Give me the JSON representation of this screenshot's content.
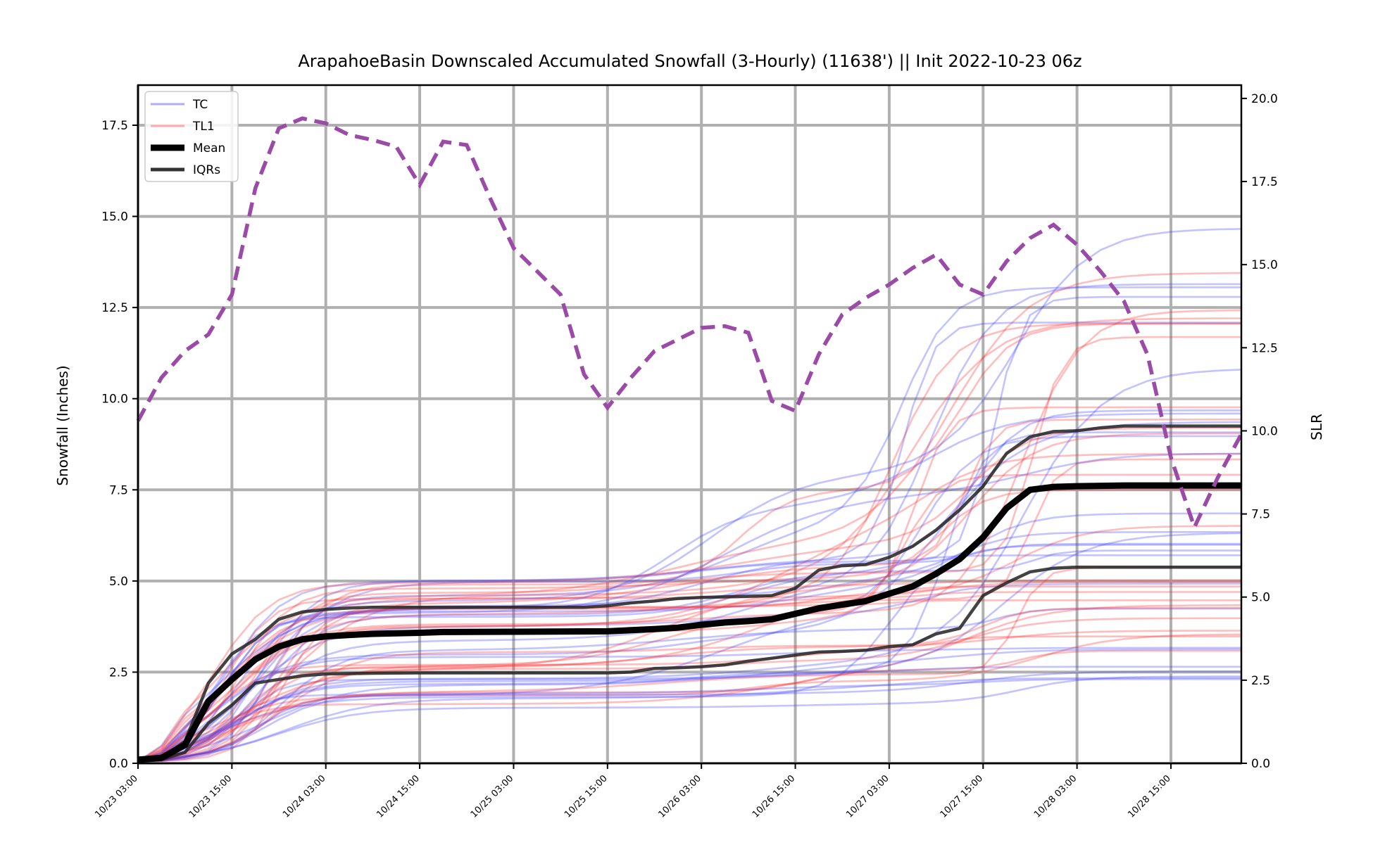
{
  "chart_data": {
    "type": "line",
    "title": "ArapahoeBasin Downscaled Accumulated Snowfall (3-Hourly) (11638') || Init 2022-10-23 06z",
    "ylabel": "Snowfall (Inches)",
    "y2label": "SLR",
    "ylim": [
      0,
      18.6
    ],
    "y2lim": [
      0,
      20.4
    ],
    "x_hours_range": [
      0,
      141
    ],
    "grid": true,
    "legend_position": "upper-left",
    "x_ticks": [
      {
        "h": 0,
        "label": "10/23 03:00"
      },
      {
        "h": 12,
        "label": "10/23 15:00"
      },
      {
        "h": 24,
        "label": "10/24 03:00"
      },
      {
        "h": 36,
        "label": "10/24 15:00"
      },
      {
        "h": 48,
        "label": "10/25 03:00"
      },
      {
        "h": 60,
        "label": "10/25 15:00"
      },
      {
        "h": 72,
        "label": "10/26 03:00"
      },
      {
        "h": 84,
        "label": "10/26 15:00"
      },
      {
        "h": 96,
        "label": "10/27 03:00"
      },
      {
        "h": 108,
        "label": "10/27 15:00"
      },
      {
        "h": 120,
        "label": "10/28 03:00"
      },
      {
        "h": 132,
        "label": "10/28 15:00"
      }
    ],
    "y_ticks": [
      {
        "v": 0,
        "label": "0.0"
      },
      {
        "v": 2.5,
        "label": "2.5"
      },
      {
        "v": 5,
        "label": "5.0"
      },
      {
        "v": 7.5,
        "label": "7.5"
      },
      {
        "v": 10,
        "label": "10.0"
      },
      {
        "v": 12.5,
        "label": "12.5"
      },
      {
        "v": 15,
        "label": "15.0"
      },
      {
        "v": 17.5,
        "label": "17.5"
      }
    ],
    "y2_ticks": [
      {
        "v": 0,
        "label": "0.0"
      },
      {
        "v": 2.5,
        "label": "2.5"
      },
      {
        "v": 5,
        "label": "5.0"
      },
      {
        "v": 7.5,
        "label": "7.5"
      },
      {
        "v": 10,
        "label": "10.0"
      },
      {
        "v": 12.5,
        "label": "12.5"
      },
      {
        "v": 15,
        "label": "15.0"
      },
      {
        "v": 17.5,
        "label": "17.5"
      },
      {
        "v": 20,
        "label": "20.0"
      }
    ],
    "legend": [
      {
        "name": "TC",
        "color": "#7777ff"
      },
      {
        "name": "TL1",
        "color": "#ff8888"
      },
      {
        "name": "Mean",
        "color": "#000000"
      },
      {
        "name": "IQRs",
        "color": "#333333"
      }
    ],
    "colors": {
      "tc": "#4444ff",
      "tl1": "#ff3333",
      "slr": "#9b4aa8",
      "grid": "#b0b0b0"
    },
    "mean": [
      [
        0,
        0.1
      ],
      [
        3,
        0.15
      ],
      [
        6,
        0.5
      ],
      [
        9,
        1.7
      ],
      [
        12,
        2.3
      ],
      [
        15,
        2.85
      ],
      [
        18,
        3.2
      ],
      [
        21,
        3.4
      ],
      [
        24,
        3.48
      ],
      [
        27,
        3.52
      ],
      [
        30,
        3.55
      ],
      [
        36,
        3.58
      ],
      [
        39,
        3.6
      ],
      [
        60,
        3.62
      ],
      [
        63,
        3.65
      ],
      [
        66,
        3.68
      ],
      [
        69,
        3.72
      ],
      [
        72,
        3.8
      ],
      [
        75,
        3.86
      ],
      [
        78,
        3.9
      ],
      [
        81,
        3.95
      ],
      [
        84,
        4.1
      ],
      [
        87,
        4.25
      ],
      [
        90,
        4.35
      ],
      [
        93,
        4.45
      ],
      [
        96,
        4.65
      ],
      [
        99,
        4.85
      ],
      [
        102,
        5.2
      ],
      [
        105,
        5.6
      ],
      [
        108,
        6.2
      ],
      [
        111,
        7.0
      ],
      [
        114,
        7.5
      ],
      [
        117,
        7.58
      ],
      [
        120,
        7.6
      ],
      [
        126,
        7.62
      ],
      [
        141,
        7.62
      ]
    ],
    "iqr_upper": [
      [
        0,
        0.1
      ],
      [
        3,
        0.15
      ],
      [
        6,
        0.6
      ],
      [
        9,
        2.2
      ],
      [
        12,
        3.0
      ],
      [
        15,
        3.4
      ],
      [
        18,
        3.95
      ],
      [
        21,
        4.15
      ],
      [
        24,
        4.22
      ],
      [
        27,
        4.26
      ],
      [
        30,
        4.28
      ],
      [
        36,
        4.28
      ],
      [
        39,
        4.28
      ],
      [
        57,
        4.28
      ],
      [
        60,
        4.32
      ],
      [
        63,
        4.4
      ],
      [
        66,
        4.45
      ],
      [
        69,
        4.52
      ],
      [
        72,
        4.55
      ],
      [
        78,
        4.58
      ],
      [
        81,
        4.6
      ],
      [
        84,
        4.8
      ],
      [
        87,
        5.3
      ],
      [
        90,
        5.42
      ],
      [
        93,
        5.45
      ],
      [
        96,
        5.65
      ],
      [
        99,
        5.95
      ],
      [
        102,
        6.4
      ],
      [
        105,
        6.95
      ],
      [
        108,
        7.6
      ],
      [
        111,
        8.5
      ],
      [
        114,
        8.95
      ],
      [
        117,
        9.1
      ],
      [
        120,
        9.12
      ],
      [
        123,
        9.2
      ],
      [
        126,
        9.25
      ],
      [
        141,
        9.25
      ]
    ],
    "iqr_lower": [
      [
        0,
        0.05
      ],
      [
        3,
        0.1
      ],
      [
        6,
        0.3
      ],
      [
        9,
        1.1
      ],
      [
        12,
        1.6
      ],
      [
        15,
        2.2
      ],
      [
        18,
        2.3
      ],
      [
        21,
        2.4
      ],
      [
        24,
        2.45
      ],
      [
        30,
        2.47
      ],
      [
        36,
        2.48
      ],
      [
        60,
        2.48
      ],
      [
        63,
        2.5
      ],
      [
        66,
        2.6
      ],
      [
        69,
        2.62
      ],
      [
        72,
        2.65
      ],
      [
        75,
        2.7
      ],
      [
        78,
        2.8
      ],
      [
        81,
        2.88
      ],
      [
        84,
        2.97
      ],
      [
        87,
        3.05
      ],
      [
        90,
        3.07
      ],
      [
        93,
        3.1
      ],
      [
        96,
        3.2
      ],
      [
        99,
        3.25
      ],
      [
        102,
        3.55
      ],
      [
        105,
        3.7
      ],
      [
        108,
        4.6
      ],
      [
        111,
        4.95
      ],
      [
        114,
        5.25
      ],
      [
        117,
        5.35
      ],
      [
        120,
        5.38
      ],
      [
        141,
        5.38
      ]
    ],
    "slr": [
      [
        0,
        10.3
      ],
      [
        3,
        11.6
      ],
      [
        6,
        12.4
      ],
      [
        9,
        12.9
      ],
      [
        12,
        14.1
      ],
      [
        15,
        17.3
      ],
      [
        18,
        19.1
      ],
      [
        21,
        19.4
      ],
      [
        24,
        19.25
      ],
      [
        27,
        18.9
      ],
      [
        30,
        18.75
      ],
      [
        33,
        18.55
      ],
      [
        36,
        17.4
      ],
      [
        39,
        18.7
      ],
      [
        42,
        18.6
      ],
      [
        45,
        17
      ],
      [
        48,
        15.5
      ],
      [
        51,
        14.8
      ],
      [
        54,
        14.1
      ],
      [
        57,
        11.7
      ],
      [
        60,
        10.7
      ],
      [
        63,
        11.6
      ],
      [
        66,
        12.4
      ],
      [
        69,
        12.75
      ],
      [
        72,
        13.1
      ],
      [
        75,
        13.15
      ],
      [
        78,
        12.95
      ],
      [
        81,
        10.9
      ],
      [
        84,
        10.6
      ],
      [
        87,
        12.3
      ],
      [
        90,
        13.5
      ],
      [
        93,
        14
      ],
      [
        96,
        14.4
      ],
      [
        99,
        14.9
      ],
      [
        102,
        15.3
      ],
      [
        105,
        14.4
      ],
      [
        108,
        14.1
      ],
      [
        111,
        15.1
      ],
      [
        114,
        15.8
      ],
      [
        117,
        16.2
      ],
      [
        120,
        15.6
      ],
      [
        123,
        14.8
      ],
      [
        126,
        13.9
      ],
      [
        129,
        12.3
      ],
      [
        132,
        9.2
      ],
      [
        135,
        7.1
      ],
      [
        138,
        8.6
      ],
      [
        141,
        9.9
      ]
    ]
  }
}
